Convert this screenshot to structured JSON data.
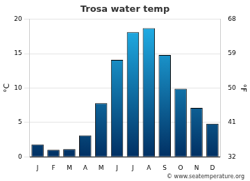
{
  "chart_data": {
    "type": "bar",
    "title": "Trosa water temp",
    "categories": [
      "J",
      "F",
      "M",
      "A",
      "M",
      "J",
      "J",
      "A",
      "S",
      "O",
      "N",
      "D"
    ],
    "values": [
      1.8,
      1.0,
      1.1,
      3.1,
      7.8,
      14.1,
      18.1,
      18.7,
      14.8,
      9.9,
      7.1,
      4.8
    ],
    "color": "#22b4ec",
    "y_label": "°C",
    "y2_label": "°F",
    "ylim": [
      0,
      20
    ],
    "yticks": [
      0,
      5,
      10,
      15,
      20
    ],
    "y2lim": [
      32,
      68
    ],
    "y2ticks": [
      32,
      41,
      50,
      59,
      68
    ],
    "grid": true,
    "annotations": [
      "© www.seatemperature.org"
    ]
  }
}
